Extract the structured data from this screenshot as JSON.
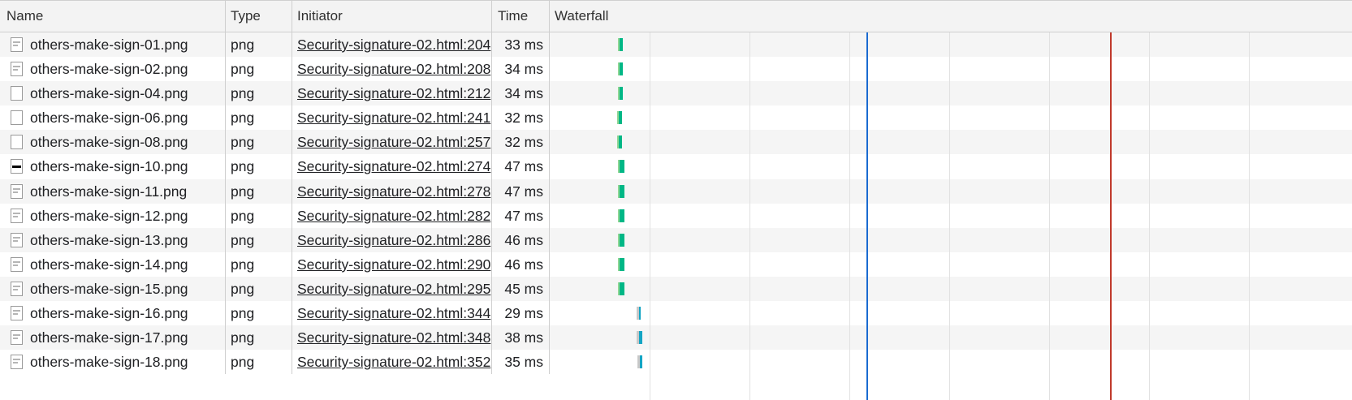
{
  "columns": {
    "name": "Name",
    "type": "Type",
    "initiator": "Initiator",
    "time": "Time",
    "waterfall": "Waterfall"
  },
  "colors": {
    "receive": "#00b786",
    "receive_alt": "#13a5c4",
    "dom_content_loaded": "#1a6bd1",
    "load": "#c0392b"
  },
  "rows": [
    {
      "name": "others-make-sign-01.png",
      "type": "png",
      "initiator": "Security-signature-02.html:204",
      "time": "33 ms",
      "icon": "image-file-icon",
      "wf_start": 0.085,
      "wf_width": 0.006,
      "variant": "green"
    },
    {
      "name": "others-make-sign-02.png",
      "type": "png",
      "initiator": "Security-signature-02.html:208",
      "time": "34 ms",
      "icon": "image-file-icon",
      "wf_start": 0.085,
      "wf_width": 0.006,
      "variant": "green"
    },
    {
      "name": "others-make-sign-04.png",
      "type": "png",
      "initiator": "Security-signature-02.html:212",
      "time": "34 ms",
      "icon": "blank-file-icon",
      "wf_start": 0.085,
      "wf_width": 0.006,
      "variant": "green"
    },
    {
      "name": "others-make-sign-06.png",
      "type": "png",
      "initiator": "Security-signature-02.html:241",
      "time": "32 ms",
      "icon": "blank-file-icon",
      "wf_start": 0.084,
      "wf_width": 0.006,
      "variant": "green"
    },
    {
      "name": "others-make-sign-08.png",
      "type": "png",
      "initiator": "Security-signature-02.html:257",
      "time": "32 ms",
      "icon": "blank-file-icon",
      "wf_start": 0.084,
      "wf_width": 0.006,
      "variant": "green"
    },
    {
      "name": "others-make-sign-10.png",
      "type": "png",
      "initiator": "Security-signature-02.html:274",
      "time": "47 ms",
      "icon": "dash-file-icon",
      "wf_start": 0.085,
      "wf_width": 0.008,
      "variant": "green"
    },
    {
      "name": "others-make-sign-11.png",
      "type": "png",
      "initiator": "Security-signature-02.html:278",
      "time": "47 ms",
      "icon": "image-file-icon",
      "wf_start": 0.085,
      "wf_width": 0.008,
      "variant": "green"
    },
    {
      "name": "others-make-sign-12.png",
      "type": "png",
      "initiator": "Security-signature-02.html:282",
      "time": "47 ms",
      "icon": "image-file-icon",
      "wf_start": 0.085,
      "wf_width": 0.008,
      "variant": "green"
    },
    {
      "name": "others-make-sign-13.png",
      "type": "png",
      "initiator": "Security-signature-02.html:286",
      "time": "46 ms",
      "icon": "image-file-icon",
      "wf_start": 0.085,
      "wf_width": 0.008,
      "variant": "green"
    },
    {
      "name": "others-make-sign-14.png",
      "type": "png",
      "initiator": "Security-signature-02.html:290",
      "time": "46 ms",
      "icon": "image-file-icon",
      "wf_start": 0.085,
      "wf_width": 0.008,
      "variant": "green"
    },
    {
      "name": "others-make-sign-15.png",
      "type": "png",
      "initiator": "Security-signature-02.html:295",
      "time": "45 ms",
      "icon": "image-file-icon",
      "wf_start": 0.085,
      "wf_width": 0.008,
      "variant": "green"
    },
    {
      "name": "others-make-sign-16.png",
      "type": "png",
      "initiator": "Security-signature-02.html:344",
      "time": "29 ms",
      "icon": "image-file-icon",
      "wf_start": 0.108,
      "wf_width": 0.005,
      "variant": "blue"
    },
    {
      "name": "others-make-sign-17.png",
      "type": "png",
      "initiator": "Security-signature-02.html:348",
      "time": "38 ms",
      "icon": "image-file-icon",
      "wf_start": 0.108,
      "wf_width": 0.007,
      "variant": "blue"
    },
    {
      "name": "others-make-sign-18.png",
      "type": "png",
      "initiator": "Security-signature-02.html:352",
      "time": "35 ms",
      "icon": "image-file-icon",
      "wf_start": 0.109,
      "wf_width": 0.006,
      "variant": "blue"
    }
  ]
}
